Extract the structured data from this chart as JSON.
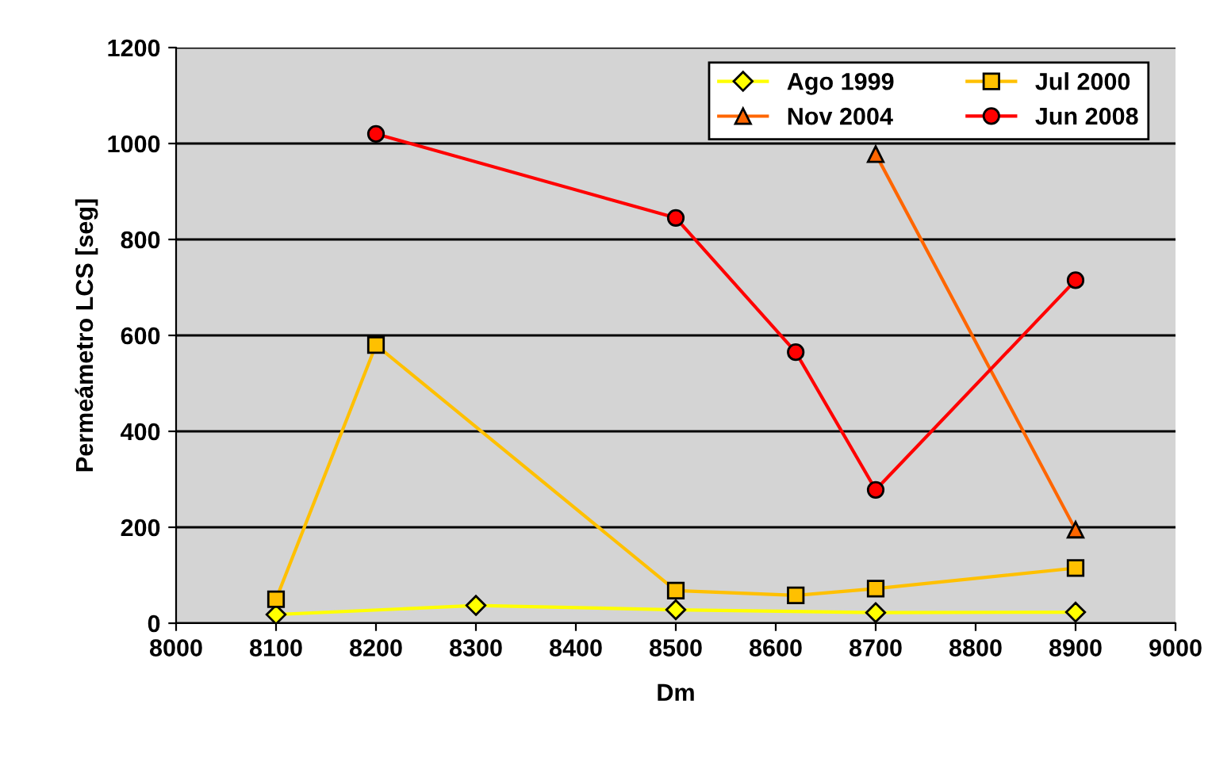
{
  "chart_data": {
    "type": "line",
    "xlabel": "Dm",
    "ylabel": "Permeámetro LCS [seg]",
    "xlim": [
      8000,
      9000
    ],
    "xticks": [
      8000,
      8100,
      8200,
      8300,
      8400,
      8500,
      8600,
      8700,
      8800,
      8900,
      9000
    ],
    "ylim": [
      0,
      1200
    ],
    "yticks": [
      0,
      200,
      400,
      600,
      800,
      1000,
      1200
    ],
    "grid": "y",
    "legend": "top right",
    "line_style": "solid",
    "series": [
      {
        "name": "Ago 1999",
        "color": "#ffff00",
        "marker": "diamond",
        "x": [
          8100,
          8300,
          8500,
          8700,
          8900
        ],
        "values": [
          18,
          37,
          28,
          22,
          23
        ]
      },
      {
        "name": "Jul 2000",
        "color": "#ffc000",
        "marker": "square",
        "x": [
          8100,
          8200,
          8500,
          8620,
          8700,
          8900
        ],
        "values": [
          50,
          580,
          68,
          58,
          72,
          115
        ]
      },
      {
        "name": "Nov 2004",
        "color": "#ff6600",
        "marker": "triangle",
        "x": [
          8700,
          8900
        ],
        "values": [
          978,
          195
        ]
      },
      {
        "name": "Jun 2008",
        "color": "#ff0000",
        "marker": "circle",
        "x": [
          8200,
          8500,
          8620,
          8700,
          8900
        ],
        "values": [
          1020,
          845,
          565,
          278,
          715
        ]
      }
    ]
  }
}
